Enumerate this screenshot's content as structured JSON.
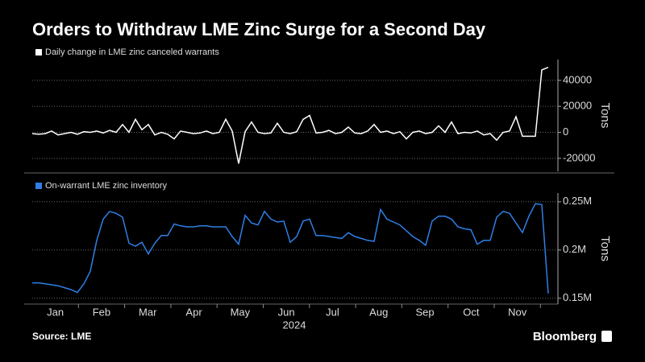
{
  "title": "Orders to Withdraw LME Zinc Surge for a Second Day",
  "source": "Source: LME",
  "brand": "Bloomberg",
  "x_axis": {
    "months": [
      "Jan",
      "Feb",
      "Mar",
      "Apr",
      "May",
      "Jun",
      "Jul",
      "Aug",
      "Sep",
      "Oct",
      "Nov"
    ],
    "year": "2024"
  },
  "chart_data": [
    {
      "type": "line",
      "ylabel": "Tons",
      "grid": true,
      "ylim": [
        -30000,
        56000
      ],
      "yticks": [
        -20000,
        0,
        20000,
        40000
      ],
      "series": [
        {
          "name": "Daily change in LME zinc canceled warrants",
          "color": "#ffffff",
          "values": [
            -1000,
            -1500,
            -1000,
            1000,
            -2000,
            -1000,
            0,
            -1500,
            500,
            0,
            1000,
            -500,
            1500,
            0,
            6000,
            0,
            10000,
            2000,
            6000,
            -2000,
            0,
            -1500,
            -5000,
            1000,
            0,
            -1000,
            -500,
            1000,
            -1000,
            0,
            10000,
            1000,
            -24000,
            500,
            8000,
            0,
            -1000,
            -500,
            7000,
            0,
            -1000,
            500,
            10000,
            13000,
            -500,
            0,
            1500,
            -1000,
            0,
            4000,
            -500,
            -1000,
            1000,
            6000,
            0,
            1000,
            -1000,
            500,
            -5000,
            0,
            1000,
            -1000,
            0,
            5000,
            0,
            8000,
            -1000,
            0,
            -500,
            1000,
            -2000,
            -1000,
            -6000,
            0,
            1000,
            12000,
            -3000,
            -3000,
            -3000,
            48000,
            50000
          ]
        }
      ]
    },
    {
      "type": "line",
      "ylabel": "Tons",
      "grid": true,
      "ylim": [
        144000,
        259000
      ],
      "yticks": [
        {
          "value": 150000,
          "label": "0.15M"
        },
        {
          "value": 200000,
          "label": "0.2M"
        },
        {
          "value": 250000,
          "label": "0.25M"
        }
      ],
      "series": [
        {
          "name": "On-warrant LME zinc inventory",
          "color": "#2f7fe6",
          "values": [
            166000,
            166000,
            165000,
            164000,
            163000,
            161000,
            159000,
            156000,
            165000,
            178000,
            210000,
            232000,
            240000,
            238000,
            234000,
            207000,
            204000,
            208000,
            196000,
            207000,
            215000,
            215000,
            227000,
            225000,
            224000,
            224000,
            225000,
            225000,
            224000,
            224000,
            224000,
            214000,
            206000,
            236000,
            228000,
            226000,
            240000,
            232000,
            229000,
            230000,
            208000,
            214000,
            230000,
            232000,
            215000,
            215000,
            214000,
            213000,
            212000,
            218000,
            214000,
            212000,
            210000,
            209000,
            242000,
            232000,
            229000,
            226000,
            220000,
            214000,
            210000,
            205000,
            230000,
            235000,
            235000,
            232000,
            224000,
            222000,
            221000,
            206000,
            210000,
            210000,
            234000,
            240000,
            238000,
            228000,
            218000,
            235000,
            248000,
            247000,
            155000
          ]
        }
      ]
    }
  ]
}
